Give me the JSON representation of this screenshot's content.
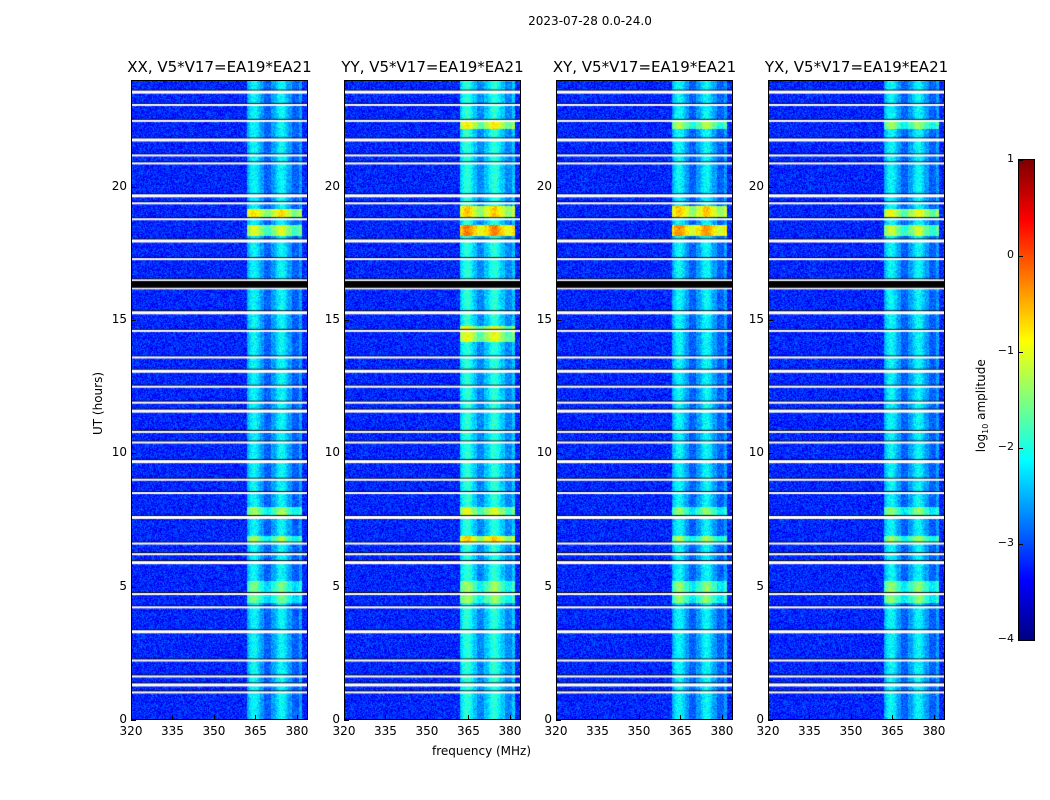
{
  "chart_data": {
    "type": "heatmap",
    "title": "2023-07-28 0.0-24.0",
    "xlabel": "frequency (MHz)",
    "ylabel": "UT (hours)",
    "xlim": [
      320,
      384
    ],
    "ylim": [
      0,
      24
    ],
    "xticks": [
      "320",
      "335",
      "350",
      "365",
      "380"
    ],
    "xtick_values": [
      320,
      335,
      350,
      365,
      380
    ],
    "yticks": [
      "0",
      "5",
      "10",
      "15",
      "20"
    ],
    "ytick_values": [
      0,
      5,
      10,
      15,
      20
    ],
    "panels": [
      {
        "title": "XX, V5*V17=EA19*EA21",
        "band_level": -2.1,
        "hot_hours": [
          [
            18.9,
            19.2,
            -0.7
          ],
          [
            18.2,
            18.6,
            -1.0
          ],
          [
            7.6,
            8.0,
            -1.3
          ],
          [
            6.6,
            6.9,
            -1.3
          ],
          [
            4.4,
            5.2,
            -1.5
          ]
        ]
      },
      {
        "title": "YY, V5*V17=EA19*EA21",
        "band_level": -1.9,
        "hot_hours": [
          [
            18.9,
            19.3,
            -0.6
          ],
          [
            18.2,
            18.6,
            -0.2
          ],
          [
            22.2,
            22.6,
            -0.8
          ],
          [
            14.2,
            14.8,
            -0.9
          ],
          [
            7.6,
            8.0,
            -1.0
          ],
          [
            6.6,
            6.9,
            -0.6
          ],
          [
            4.4,
            5.2,
            -1.3
          ]
        ]
      },
      {
        "title": "XY, V5*V17=EA19*EA21",
        "band_level": -2.1,
        "hot_hours": [
          [
            18.9,
            19.3,
            -0.6
          ],
          [
            18.2,
            18.6,
            -0.3
          ],
          [
            22.2,
            22.6,
            -1.2
          ],
          [
            7.6,
            8.0,
            -1.4
          ],
          [
            6.6,
            6.9,
            -1.3
          ],
          [
            4.4,
            5.2,
            -1.4
          ]
        ]
      },
      {
        "title": "YX, V5*V17=EA19*EA21",
        "band_level": -2.1,
        "hot_hours": [
          [
            18.9,
            19.2,
            -0.9
          ],
          [
            18.2,
            18.6,
            -1.1
          ],
          [
            22.2,
            22.6,
            -1.3
          ],
          [
            7.6,
            8.0,
            -1.4
          ],
          [
            6.6,
            6.9,
            -1.3
          ],
          [
            4.4,
            5.2,
            -1.4
          ]
        ]
      }
    ],
    "rfi_band_mhz": [
      362,
      382
    ],
    "background_level": -3.2,
    "flagged_hours": [
      23.6,
      23.1,
      22.5,
      21.8,
      21.2,
      20.9,
      19.7,
      19.4,
      18.8,
      18.0,
      17.3,
      16.5,
      16.4,
      16.3,
      16.2,
      15.3,
      14.6,
      13.6,
      13.1,
      12.5,
      11.9,
      11.6,
      10.8,
      10.4,
      9.7,
      9.0,
      8.5,
      7.6,
      6.6,
      6.2,
      5.9,
      4.7,
      4.2,
      3.3,
      2.2,
      1.6,
      1.3,
      1.0
    ],
    "colorbar": {
      "label": "log10 amplitude",
      "label_base": "log",
      "label_sub": "10",
      "label_rest": " amplitude",
      "range": [
        -4,
        1
      ],
      "ticks": [
        "1",
        "0",
        "−1",
        "−2",
        "−3",
        "−4"
      ],
      "tick_values": [
        1,
        0,
        -1,
        -2,
        -3,
        -4
      ],
      "colormap": "jet"
    }
  }
}
